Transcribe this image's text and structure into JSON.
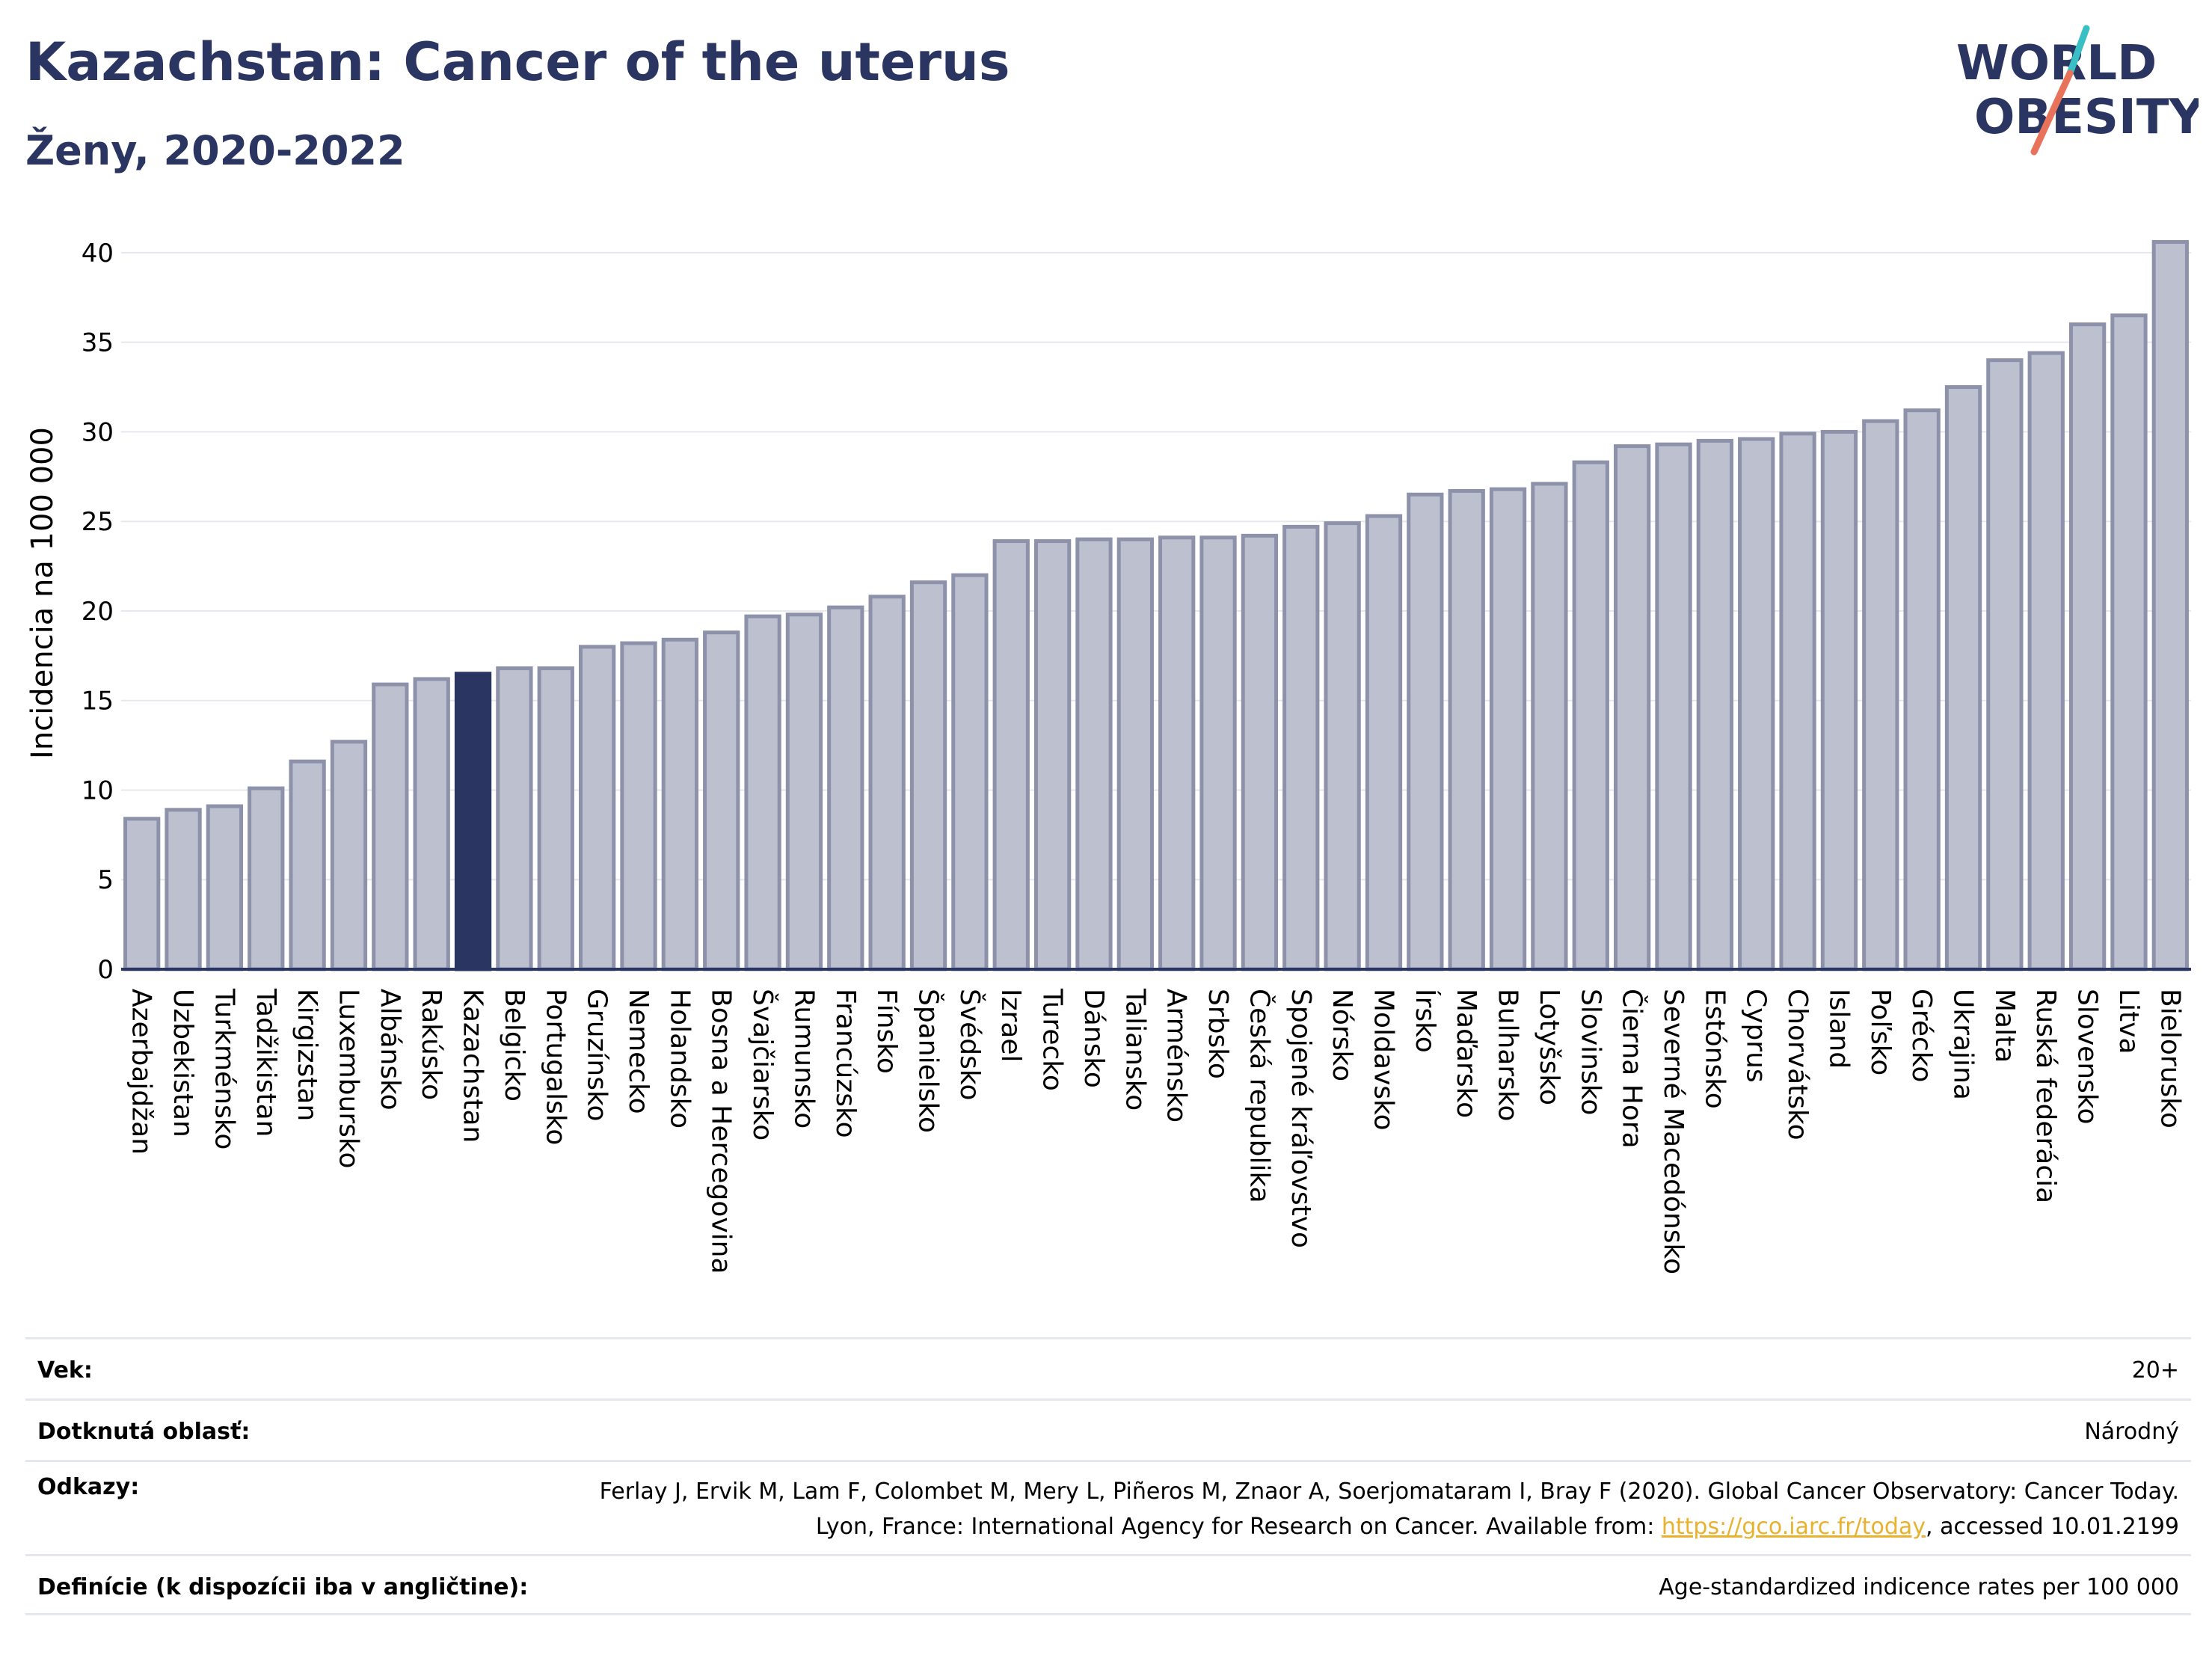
{
  "header": {
    "title": "Kazachstan: Cancer of the uterus",
    "subtitle": "Ženy, 2020-2022"
  },
  "logo": {
    "line1": "WORLD",
    "line2": "OBESITY",
    "accent_colors": [
      "#e8735a",
      "#3ac0c4"
    ]
  },
  "colors": {
    "bar": "#bcc0cf",
    "bar_stroke": "#8d92aa",
    "highlight": "#2b3561",
    "text": "#2b3561",
    "link": "#e8b22e"
  },
  "chart_data": {
    "type": "bar",
    "title": "Kazachstan: Cancer of the uterus",
    "subtitle": "Ženy, 2020-2022",
    "ylabel": "Incidencia na 100 000",
    "xlabel": "",
    "ylim": [
      0,
      42
    ],
    "yticks": [
      0,
      5,
      10,
      15,
      20,
      25,
      30,
      35,
      40
    ],
    "grid": true,
    "highlight_category": "Kazachstan",
    "categories": [
      "Azerbajdžan",
      "Uzbekistan",
      "Turkménsko",
      "Tadžikistan",
      "Kirgizstan",
      "Luxembursko",
      "Albánsko",
      "Rakúsko",
      "Kazachstan",
      "Belgicko",
      "Portugalsko",
      "Gruzínsko",
      "Nemecko",
      "Holandsko",
      "Bosna a Hercegovina",
      "Švajčiarsko",
      "Rumunsko",
      "Francúzsko",
      "Fínsko",
      "Španielsko",
      "Švédsko",
      "Izrael",
      "Turecko",
      "Dánsko",
      "Taliansko",
      "Arménsko",
      "Srbsko",
      "Česká republika",
      "Spojené kráľovstvo",
      "Nórsko",
      "Moldavsko",
      "Írsko",
      "Maďarsko",
      "Bulharsko",
      "Lotyšsko",
      "Slovinsko",
      "Čierna Hora",
      "Severné Macedónsko",
      "Estónsko",
      "Cyprus",
      "Chorvátsko",
      "Island",
      "Poľsko",
      "Grécko",
      "Ukrajina",
      "Malta",
      "Ruská federácia",
      "Slovensko",
      "Litva",
      "Bielorusko"
    ],
    "values": [
      8.4,
      8.9,
      9.1,
      10.1,
      11.6,
      12.7,
      15.9,
      16.2,
      16.5,
      16.8,
      16.8,
      18.0,
      18.2,
      18.4,
      18.8,
      19.7,
      19.8,
      20.2,
      20.8,
      21.6,
      22.0,
      23.9,
      23.9,
      24.0,
      24.0,
      24.1,
      24.1,
      24.2,
      24.7,
      24.9,
      25.3,
      26.5,
      26.7,
      26.8,
      27.1,
      28.3,
      29.2,
      29.3,
      29.5,
      29.6,
      29.9,
      30.0,
      30.6,
      31.2,
      32.5,
      34.0,
      34.4,
      36.0,
      36.5,
      40.6
    ]
  },
  "meta": {
    "rows": [
      {
        "key": "Vek:",
        "value": "20+"
      },
      {
        "key": "Dotknutá oblasť:",
        "value": "Národný"
      },
      {
        "key": "Definície (k dispozícii iba v angličtine):",
        "value": "Age-standardized indicence rates per 100 000"
      }
    ],
    "ref_key": "Odkazy:",
    "ref_text_1": "Ferlay J, Ervik M, Lam F, Colombet M, Mery L, Piñeros M, Znaor A, Soerjomataram I, Bray F (2020). Global Cancer Observatory: Cancer Today. Lyon, France: International Agency for Research on Cancer. Available from: ",
    "ref_link": "https://gco.iarc.fr/today",
    "ref_text_2": ", accessed 10.01.2199"
  }
}
